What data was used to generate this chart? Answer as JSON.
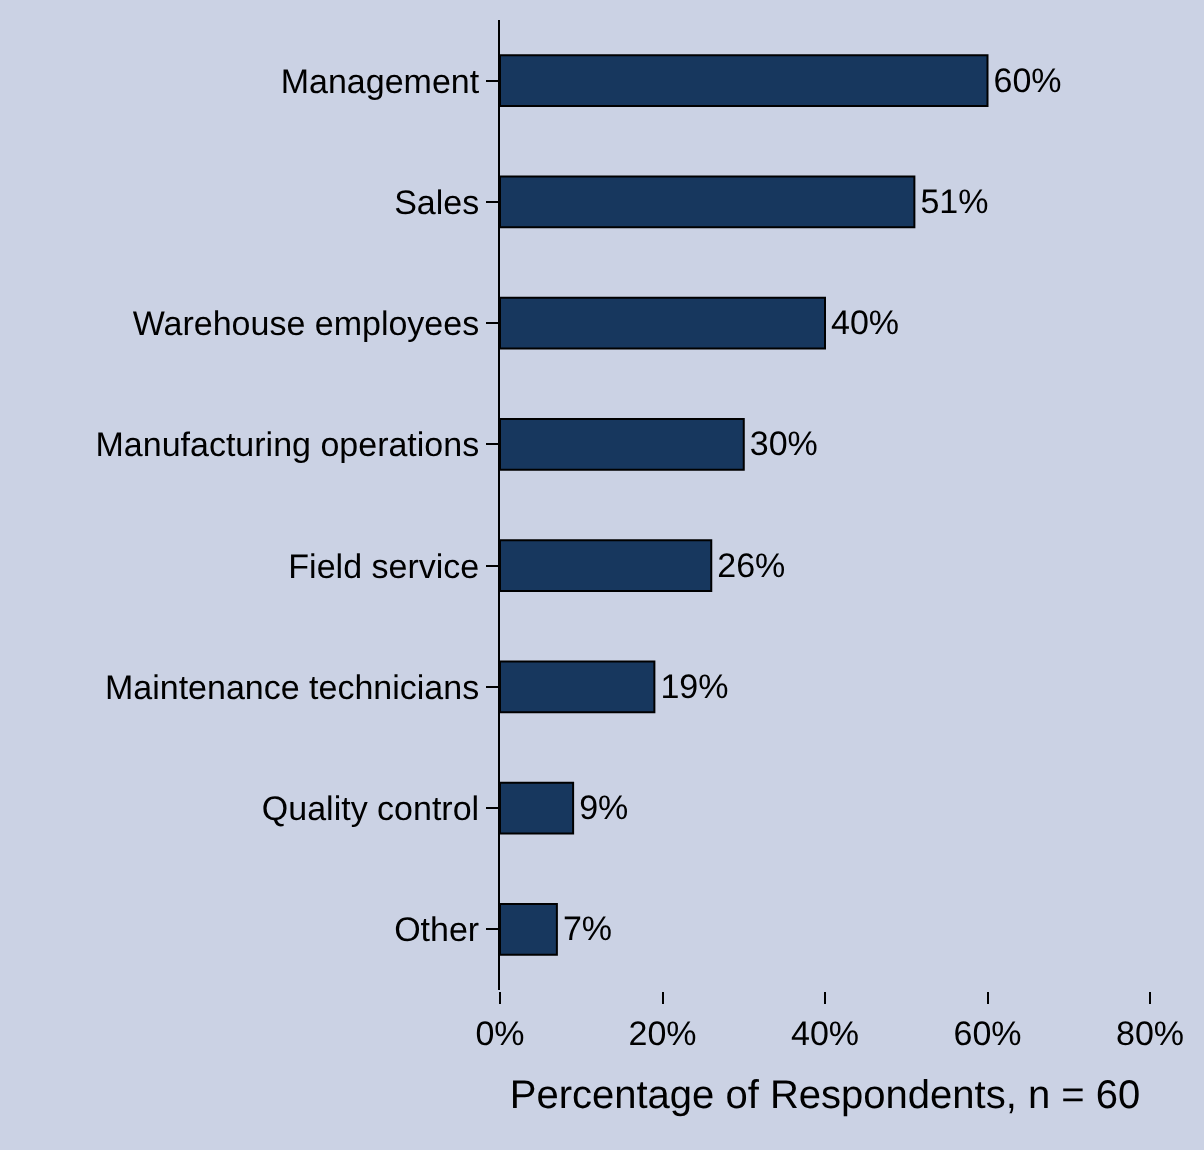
{
  "chart_data": {
    "type": "bar",
    "orientation": "horizontal",
    "categories": [
      "Management",
      "Sales",
      "Warehouse employees",
      "Manufacturing operations",
      "Field service",
      "Maintenance technicians",
      "Quality control",
      "Other"
    ],
    "values": [
      60,
      51,
      40,
      30,
      26,
      19,
      9,
      7
    ],
    "value_labels": [
      "60%",
      "51%",
      "40%",
      "30%",
      "26%",
      "19%",
      "9%",
      "7%"
    ],
    "color": "#17375e",
    "xlabel": "Percentage of Respondents, n = 60",
    "xlim": [
      0,
      80
    ],
    "xticks": [
      {
        "value": 0,
        "label": "0%"
      },
      {
        "value": 20,
        "label": "20%"
      },
      {
        "value": 40,
        "label": "40%"
      },
      {
        "value": 60,
        "label": "60%"
      },
      {
        "value": 80,
        "label": "80%"
      }
    ],
    "grid": false,
    "legend": false
  }
}
